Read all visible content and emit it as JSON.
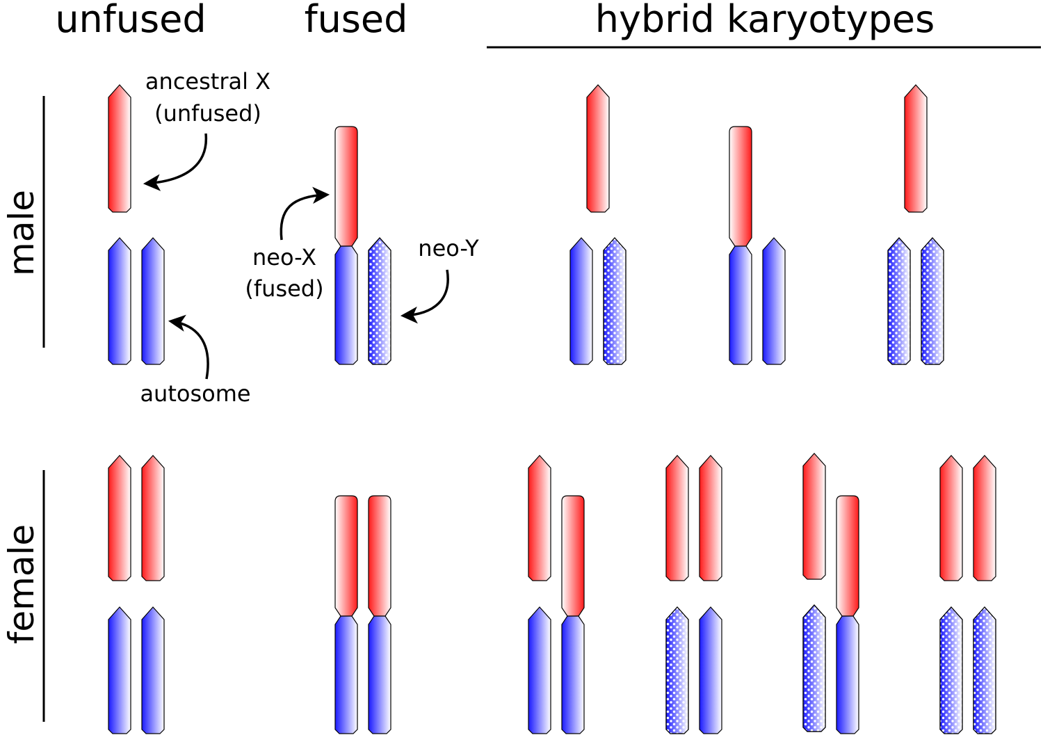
{
  "headers": {
    "unfused": "unfused",
    "fused": "fused",
    "hybrid": "hybrid karyotypes"
  },
  "rows": {
    "male": "male",
    "female": "female"
  },
  "annotations": {
    "ancestral_x_line1": "ancestral X",
    "ancestral_x_line2": "(unfused)",
    "neo_x_line1": "neo-X",
    "neo_x_line2": "(fused)",
    "neo_y": "neo-Y",
    "autosome": "autosome"
  },
  "colors": {
    "x_chromosome": "#ff2222",
    "autosome": "#2a2aff",
    "neo_y_dots": "#ffffff",
    "outline": "#000000"
  },
  "karyotypes": {
    "male": [
      {
        "group": "unfused",
        "chromosomes": [
          "ancestral-x",
          "autosome",
          "autosome"
        ]
      },
      {
        "group": "fused",
        "chromosomes": [
          "neo-x",
          "neo-y"
        ]
      },
      {
        "group": "hybrid-1",
        "chromosomes": [
          "ancestral-x",
          "autosome",
          "neo-y"
        ]
      },
      {
        "group": "hybrid-2",
        "chromosomes": [
          "neo-x",
          "autosome"
        ]
      },
      {
        "group": "hybrid-3",
        "chromosomes": [
          "ancestral-x",
          "neo-y",
          "neo-y"
        ]
      }
    ],
    "female": [
      {
        "group": "unfused",
        "chromosomes": [
          "ancestral-x",
          "ancestral-x",
          "autosome",
          "autosome"
        ]
      },
      {
        "group": "fused",
        "chromosomes": [
          "neo-x",
          "neo-x"
        ]
      },
      {
        "group": "hybrid-1",
        "chromosomes": [
          "ancestral-x",
          "autosome",
          "neo-x"
        ]
      },
      {
        "group": "hybrid-2",
        "chromosomes": [
          "ancestral-x",
          "ancestral-x",
          "neo-y",
          "autosome"
        ]
      },
      {
        "group": "hybrid-3",
        "chromosomes": [
          "ancestral-x",
          "neo-y",
          "neo-x"
        ]
      },
      {
        "group": "hybrid-4",
        "chromosomes": [
          "ancestral-x",
          "ancestral-x",
          "neo-y",
          "neo-y"
        ]
      }
    ]
  }
}
